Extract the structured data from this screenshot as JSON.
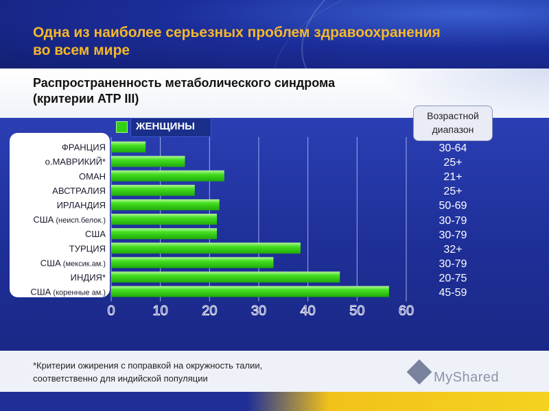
{
  "header": {
    "title_line1": "Одна из наиболее серьезных проблем здравоохранения",
    "title_line2": "во всем мире"
  },
  "subtitle": {
    "line1": "Распространенность метаболического синдрома",
    "line2": "(критерии ATP III)"
  },
  "legend": {
    "label": "ЖЕНЩИНЫ",
    "color": "#33d016"
  },
  "age_header": {
    "line1": "Возрастной",
    "line2": "диапазон"
  },
  "footer": {
    "note_line1": "*Критерии ожирения с поправкой на окружность талии,",
    "note_line2": "соответственно для индийской популяции",
    "watermark": "MyShared"
  },
  "chart_data": {
    "type": "bar",
    "orientation": "horizontal",
    "categories": [
      {
        "main": "ФРАНЦИЯ",
        "note": ""
      },
      {
        "main": "о.МАВРИКИЙ*",
        "note": ""
      },
      {
        "main": "ОМАН",
        "note": ""
      },
      {
        "main": "АВСТРАЛИЯ",
        "note": ""
      },
      {
        "main": "ИРЛАНДИЯ",
        "note": ""
      },
      {
        "main": "США",
        "note": "(неисп.белок.)"
      },
      {
        "main": "США",
        "note": ""
      },
      {
        "main": "ТУРЦИЯ",
        "note": ""
      },
      {
        "main": "США",
        "note": "(мексик.ам.)"
      },
      {
        "main": "ИНДИЯ*",
        "note": ""
      },
      {
        "main": "США",
        "note": "(коренные ам.)"
      }
    ],
    "series": [
      {
        "name": "ЖЕНЩИНЫ",
        "values": [
          7,
          15,
          23,
          17,
          22,
          21.5,
          21.5,
          38.5,
          33,
          46.5,
          56.5
        ]
      }
    ],
    "age_ranges": [
      "30-64",
      "25+",
      "21+",
      "25+",
      "50-69",
      "30-79",
      "30-79",
      "32+",
      "30-79",
      "20-75",
      "45-59"
    ],
    "xlim": [
      0,
      60
    ],
    "xticks": [
      "0",
      "10",
      "20",
      "30",
      "40",
      "50",
      "60"
    ],
    "grid": true,
    "bar_color": "#33d016"
  }
}
